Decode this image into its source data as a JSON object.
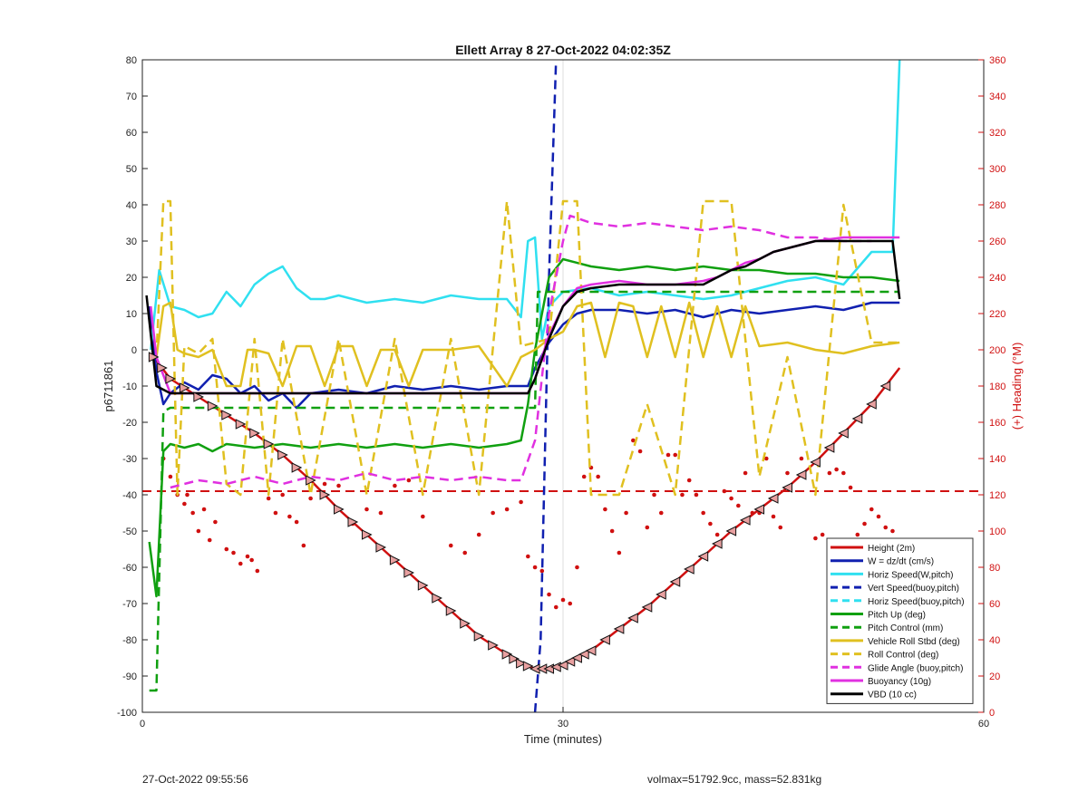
{
  "chart_data": {
    "type": "line",
    "title": "Ellett Array 8 27-Oct-2022 04:02:35Z",
    "xlabel": "Time (minutes)",
    "ylabel": "p6711861",
    "y2label": "(+) Heading (°M)",
    "xlim": [
      0,
      60
    ],
    "ylim": [
      -100,
      80
    ],
    "y2lim": [
      0,
      360
    ],
    "xticks": [
      0,
      30,
      60
    ],
    "yticks": [
      -100,
      -90,
      -80,
      -70,
      -60,
      -50,
      -40,
      -30,
      -20,
      -10,
      0,
      10,
      20,
      30,
      40,
      50,
      60,
      70,
      80
    ],
    "y2ticks": [
      0,
      20,
      40,
      60,
      80,
      100,
      120,
      140,
      160,
      180,
      200,
      220,
      240,
      260,
      280,
      300,
      320,
      340,
      360
    ],
    "grid": "vertical at x=30",
    "legend_position": "bottom-right",
    "colors": {
      "red": "#d01010",
      "blue": "#1020b0",
      "cyan": "#30e0f0",
      "green": "#10a010",
      "yellow": "#e0c020",
      "magenta": "#e030e0",
      "black": "#000000",
      "axis2": "#d01010"
    },
    "series": [
      {
        "name": "Height (2m)",
        "color": "#d01010",
        "style": "solid",
        "x": [
          0.8,
          2,
          4,
          6,
          8,
          10,
          12,
          14,
          16,
          18,
          20,
          22,
          24,
          26,
          27,
          28,
          29,
          30,
          31,
          32,
          34,
          36,
          38,
          40,
          42,
          44,
          46,
          48,
          50,
          52,
          54
        ],
        "y": [
          -2,
          -8,
          -13,
          -18,
          -23,
          -29,
          -36,
          -44,
          -51,
          -58,
          -65,
          -72,
          -79,
          -84,
          -86.5,
          -88,
          -88,
          -87,
          -85,
          -83,
          -77,
          -71,
          -64,
          -57,
          -50,
          -44,
          -38,
          -31,
          -23,
          -15,
          -5
        ]
      },
      {
        "name": "W = dz/dt (cm/s)",
        "color": "#1020b0",
        "style": "solid",
        "x": [
          0.5,
          1,
          1.5,
          2,
          3,
          4,
          5,
          6,
          7,
          8,
          9,
          10,
          11,
          12,
          14,
          16,
          18,
          20,
          22,
          24,
          26,
          27.5,
          28,
          29,
          30,
          31,
          32,
          34,
          36,
          38,
          40,
          42,
          44,
          46,
          48,
          50,
          52,
          54
        ],
        "y": [
          12,
          -6,
          -15,
          -12,
          -9,
          -11,
          -7,
          -8,
          -12,
          -10,
          -14,
          -12,
          -16,
          -12,
          -11,
          -12,
          -10,
          -11,
          -10,
          -11,
          -10,
          -10,
          -5,
          2,
          7,
          10,
          11,
          11,
          10,
          11,
          9,
          11,
          10,
          11,
          12,
          11,
          13,
          13
        ]
      },
      {
        "name": "Horiz Speed(W,pitch)",
        "color": "#30e0f0",
        "style": "solid",
        "x": [
          0.6,
          1.2,
          2,
          3,
          4,
          5,
          6,
          7,
          8,
          9,
          10,
          11,
          12,
          13,
          14,
          16,
          18,
          20,
          22,
          24,
          26,
          27,
          27.5,
          28,
          28.5,
          29,
          30,
          32,
          34,
          36,
          38,
          40,
          42,
          44,
          46,
          48,
          50,
          52,
          53.5,
          54
        ],
        "y": [
          0,
          22,
          12,
          11,
          9,
          10,
          16,
          12,
          18,
          21,
          23,
          17,
          14,
          14,
          15,
          13,
          14,
          13,
          15,
          14,
          14,
          9,
          30,
          31,
          3,
          12,
          16,
          17,
          15,
          16,
          15,
          14,
          15,
          17,
          19,
          20,
          18,
          27,
          27,
          80
        ]
      },
      {
        "name": "Vert Speed(buoy,pitch)",
        "color": "#1020b0",
        "style": "dashed",
        "x": [
          28,
          28.4,
          29,
          29.5
        ],
        "y": [
          -100,
          -80,
          20,
          80
        ]
      },
      {
        "name": "Horiz Speed(buoy,pitch)",
        "color": "#30e0f0",
        "style": "dashed",
        "x": [],
        "y": []
      },
      {
        "name": "Pitch Up (deg)",
        "color": "#10a010",
        "style": "solid",
        "x": [
          0.5,
          1,
          1.5,
          2,
          3,
          4,
          5,
          6,
          8,
          10,
          12,
          14,
          16,
          18,
          20,
          22,
          24,
          26,
          27,
          27.5,
          28,
          29,
          30,
          32,
          34,
          36,
          38,
          40,
          42,
          44,
          46,
          48,
          50,
          52,
          54
        ],
        "y": [
          -53,
          -68,
          -28,
          -26,
          -27,
          -26,
          -28,
          -26,
          -27,
          -26,
          -27,
          -26,
          -27,
          -26,
          -27,
          -26,
          -27,
          -26,
          -25,
          -15,
          0,
          20,
          25,
          23,
          22,
          23,
          22,
          23,
          22,
          22,
          21,
          21,
          20,
          20,
          19
        ]
      },
      {
        "name": "Pitch Control (mm)",
        "color": "#10a010",
        "style": "dashed",
        "x": [
          0.5,
          1,
          1.5,
          2,
          28,
          28.2,
          30,
          54
        ],
        "y": [
          -94,
          -94,
          -17,
          -16,
          -16,
          16,
          16,
          16
        ]
      },
      {
        "name": "Vehicle Roll Stbd (deg)",
        "color": "#e0c020",
        "style": "solid",
        "x": [
          1,
          1.5,
          2,
          2.5,
          3,
          4,
          5,
          6,
          7,
          7.5,
          8,
          9,
          10,
          11,
          12,
          13,
          14,
          15,
          16,
          17,
          18,
          19,
          20,
          22,
          24,
          26,
          27,
          28,
          29,
          30,
          31,
          32,
          33,
          34,
          35,
          36,
          37,
          38,
          39,
          40,
          41,
          42,
          43,
          44,
          46,
          48,
          50,
          52,
          54
        ],
        "y": [
          -2,
          12,
          13,
          0,
          -1,
          -2,
          0,
          -10,
          -10,
          0,
          0,
          -1,
          -10,
          1,
          1,
          -10,
          1,
          1,
          -10,
          0,
          0,
          -10,
          0,
          0,
          1,
          -10,
          -2,
          0,
          3,
          5,
          12,
          13,
          -2,
          13,
          12,
          -2,
          12,
          -2,
          13,
          -2,
          12,
          -2,
          12,
          1,
          2,
          0,
          -1,
          1,
          2
        ]
      },
      {
        "name": "Roll Control (deg)",
        "color": "#e0c020",
        "style": "dashed",
        "x": [
          1,
          1.5,
          2,
          2.5,
          3,
          4,
          5,
          6,
          7,
          8,
          9,
          10,
          12,
          14,
          16,
          18,
          20,
          22,
          24,
          26,
          27,
          28,
          29,
          30,
          31,
          32,
          34,
          36,
          38,
          40,
          42,
          44,
          46,
          48,
          50,
          52,
          54
        ],
        "y": [
          -2,
          41,
          41,
          -40,
          1,
          -1,
          3,
          -37,
          -40,
          3,
          -40,
          3,
          -40,
          3,
          -40,
          3,
          -40,
          3,
          -40,
          41,
          1,
          2,
          3,
          41,
          41,
          -40,
          -40,
          -15,
          -40,
          41,
          41,
          -35,
          -2,
          -40,
          40,
          2,
          2
        ]
      },
      {
        "name": "Glide Angle (buoy,pitch)",
        "color": "#e030e0",
        "style": "dashed",
        "x": [
          2,
          4,
          6,
          8,
          10,
          12,
          14,
          16,
          18,
          20,
          22,
          24,
          26,
          27,
          28,
          29,
          30,
          30.5,
          32,
          34,
          36,
          38,
          40,
          42,
          44,
          46,
          48,
          50,
          52
        ],
        "y": [
          -38,
          -36,
          -37,
          -35,
          -37,
          -35,
          -36,
          -34,
          -36,
          -35,
          -36,
          -35,
          -36,
          -36,
          -25,
          10,
          30,
          37,
          35,
          34,
          35,
          34,
          33,
          34,
          33,
          31,
          31,
          30,
          30
        ]
      },
      {
        "name": "Buoyancy (10g)",
        "color": "#e030e0",
        "style": "solid",
        "x": [
          0.6,
          1,
          2,
          4,
          6,
          8,
          10,
          12,
          14,
          16,
          18,
          20,
          22,
          24,
          26,
          27,
          27.5,
          28,
          29,
          30,
          31,
          32,
          34,
          36,
          38,
          40,
          41,
          42,
          43,
          44,
          45,
          46,
          47,
          48,
          50,
          52,
          54
        ],
        "y": [
          12,
          -2,
          -12,
          -12,
          -12,
          -12,
          -12,
          -12,
          -12,
          -12,
          -12,
          -12,
          -12,
          -12,
          -12,
          -12,
          -12,
          -8,
          4,
          12,
          17,
          18,
          19,
          18,
          18,
          19,
          20,
          22,
          24,
          25,
          27,
          28,
          29,
          30,
          31,
          31,
          31
        ]
      },
      {
        "name": "VBD (10 cc)",
        "color": "#000000",
        "style": "solid",
        "x": [
          0.3,
          1,
          2,
          4,
          6,
          8,
          10,
          12,
          14,
          16,
          18,
          20,
          22,
          24,
          26,
          27,
          27.5,
          28,
          29,
          30,
          31,
          32,
          34,
          36,
          38,
          40,
          41,
          42,
          43,
          44,
          45,
          46,
          47,
          48,
          50,
          52,
          53.5,
          54
        ],
        "y": [
          15,
          -10,
          -12,
          -12,
          -12,
          -12,
          -12,
          -12,
          -12,
          -12,
          -12,
          -12,
          -12,
          -12,
          -12,
          -12,
          -12,
          -8,
          3,
          12,
          16,
          17,
          18,
          18,
          18,
          18,
          20,
          22,
          23,
          25,
          27,
          28,
          29,
          30,
          30,
          30,
          30,
          14
        ]
      }
    ],
    "horizontal_lines": [
      {
        "y": -39,
        "color": "#d01010",
        "style": "dashed"
      }
    ],
    "heading_points": {
      "x": [
        1.5,
        2,
        2.5,
        3,
        3.2,
        3.6,
        4,
        4.4,
        4.8,
        5.2,
        6,
        6.5,
        7,
        7.5,
        7.8,
        8.2,
        9,
        9.5,
        10,
        10.5,
        11,
        11.5,
        12,
        13,
        14,
        15,
        16,
        17,
        18,
        19,
        20,
        22,
        23,
        24,
        25,
        26,
        27,
        27.5,
        28,
        28.5,
        29,
        29.5,
        30,
        30.5,
        31,
        31.5,
        32,
        32.5,
        33,
        33.5,
        34,
        34.5,
        35,
        35.5,
        36,
        36.5,
        37,
        37.5,
        38,
        38.5,
        39,
        39.5,
        40,
        40.5,
        41,
        41.5,
        42,
        42.5,
        43,
        43.5,
        44,
        44.5,
        45,
        45.5,
        46,
        47,
        48,
        48.5,
        49,
        49.5,
        50,
        50.5,
        51,
        51.5,
        52,
        52.5,
        53,
        53.5
      ],
      "y": [
        140,
        130,
        120,
        115,
        120,
        110,
        100,
        112,
        95,
        105,
        90,
        88,
        82,
        86,
        84,
        78,
        118,
        110,
        120,
        108,
        105,
        92,
        118,
        126,
        125,
        104,
        112,
        110,
        125,
        128,
        108,
        92,
        88,
        98,
        110,
        112,
        116,
        86,
        80,
        78,
        65,
        58,
        62,
        60,
        80,
        130,
        135,
        130,
        112,
        100,
        88,
        110,
        150,
        144,
        102,
        120,
        110,
        142,
        142,
        120,
        128,
        120,
        110,
        104,
        98,
        122,
        118,
        114,
        132,
        110,
        110,
        140,
        108,
        102,
        132,
        140,
        96,
        98,
        132,
        134,
        132,
        124,
        98,
        104,
        112,
        108,
        102,
        100
      ]
    }
  },
  "footer": {
    "timestamp": "27-Oct-2022 09:55:56",
    "info": "volmax=51792.9cc, mass=52.831kg"
  }
}
